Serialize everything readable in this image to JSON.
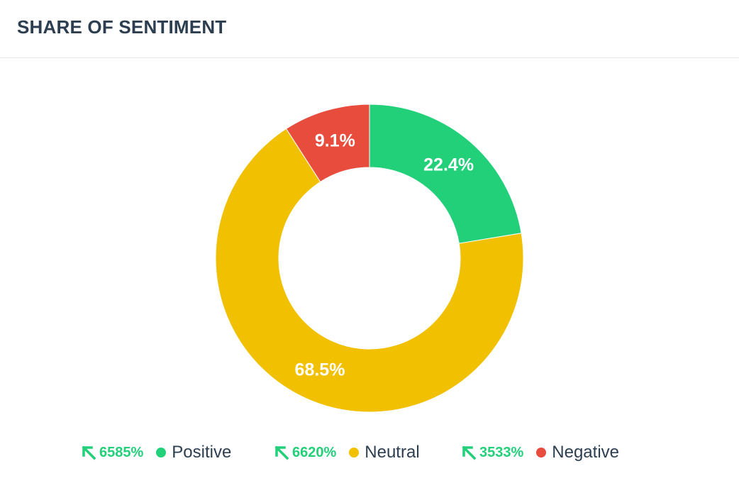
{
  "header": {
    "title": "SHARE OF SENTIMENT"
  },
  "chart_data": {
    "type": "pie",
    "variant": "donut",
    "title": "",
    "slices": [
      {
        "name": "Positive",
        "value": 22.4,
        "label": "22.4%",
        "color": "#22d07a"
      },
      {
        "name": "Neutral",
        "value": 68.5,
        "label": "68.5%",
        "color": "#f1c000"
      },
      {
        "name": "Negative",
        "value": 9.1,
        "label": "9.1%",
        "color": "#e84c3d"
      }
    ],
    "start_angle": "12 o'clock",
    "direction": "clockwise",
    "legend_position": "bottom"
  },
  "legend": {
    "items": [
      {
        "trend": "6585%",
        "trend_icon": "arrow-up-left-icon",
        "label": "Positive",
        "color": "#22d07a"
      },
      {
        "trend": "6620%",
        "trend_icon": "arrow-up-left-icon",
        "label": "Neutral",
        "color": "#f1c000"
      },
      {
        "trend": "3533%",
        "trend_icon": "arrow-up-left-icon",
        "label": "Negative",
        "color": "#e84c3d"
      }
    ],
    "trend_color": "#22d07a"
  }
}
